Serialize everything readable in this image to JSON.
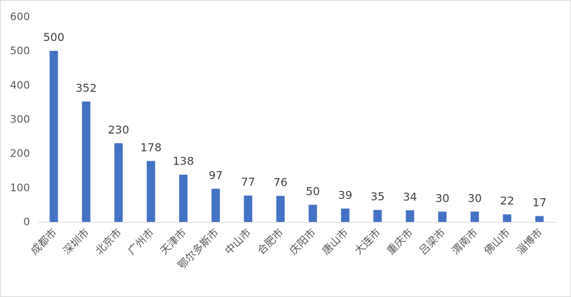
{
  "chart_data": {
    "type": "bar",
    "title": "",
    "xlabel": "",
    "ylabel": "",
    "ylim": [
      0,
      600
    ],
    "yticks": [
      0,
      100,
      200,
      300,
      400,
      500,
      600
    ],
    "grid": false,
    "legend": "none",
    "bar_color": "#4472c4",
    "categories": [
      "成都市",
      "深圳市",
      "北京市",
      "广州市",
      "天津市",
      "鄂尔多斯市",
      "中山市",
      "合肥市",
      "庆阳市",
      "唐山市",
      "大连市",
      "重庆市",
      "吕梁市",
      "渭南市",
      "佛山市",
      "淄博市"
    ],
    "values": [
      500,
      352,
      230,
      178,
      138,
      97,
      77,
      76,
      50,
      39,
      35,
      34,
      30,
      30,
      22,
      17
    ]
  }
}
